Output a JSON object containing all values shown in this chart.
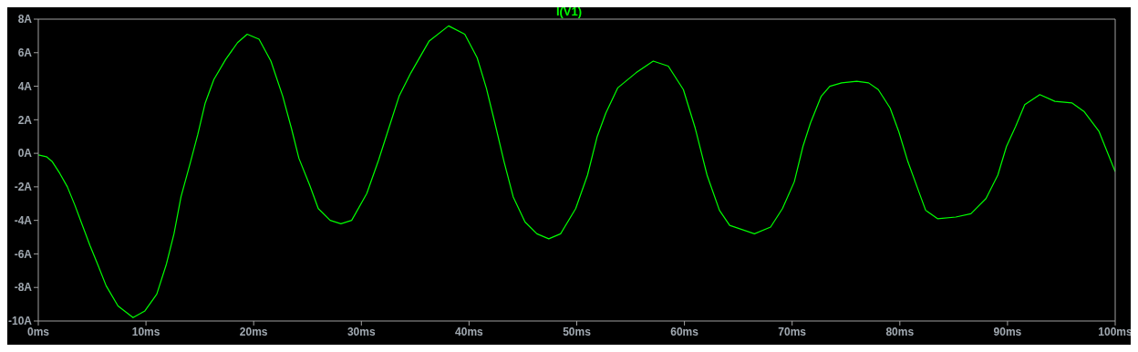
{
  "chart_data": {
    "type": "line",
    "title": "I(V1)",
    "xlim": [
      0,
      100
    ],
    "ylim": [
      -10,
      8
    ],
    "xticks": [
      {
        "value": 0,
        "label": "0ms"
      },
      {
        "value": 10,
        "label": "10ms"
      },
      {
        "value": 20,
        "label": "20ms"
      },
      {
        "value": 30,
        "label": "30ms"
      },
      {
        "value": 40,
        "label": "40ms"
      },
      {
        "value": 50,
        "label": "50ms"
      },
      {
        "value": 60,
        "label": "60ms"
      },
      {
        "value": 70,
        "label": "70ms"
      },
      {
        "value": 80,
        "label": "80ms"
      },
      {
        "value": 90,
        "label": "90ms"
      },
      {
        "value": 100,
        "label": "100ms"
      }
    ],
    "yticks": [
      {
        "value": 8,
        "label": "8A"
      },
      {
        "value": 6,
        "label": "6A"
      },
      {
        "value": 4,
        "label": "4A"
      },
      {
        "value": 2,
        "label": "2A"
      },
      {
        "value": 0,
        "label": "0A"
      },
      {
        "value": -2,
        "label": "-2A"
      },
      {
        "value": -4,
        "label": "-4A"
      },
      {
        "value": -6,
        "label": "-6A"
      },
      {
        "value": -8,
        "label": "-8A"
      },
      {
        "value": -10,
        "label": "-10A"
      }
    ],
    "grid": false,
    "legend": false,
    "marker": "none",
    "line_style": "solid",
    "series": [
      {
        "color": "#00ff00",
        "x": [
          0,
          0.75,
          1.3,
          2,
          2.7,
          3.4,
          4.1,
          4.8,
          5.5,
          6.3,
          7.4,
          8.8,
          9.9,
          11,
          11.9,
          12.6,
          13.25,
          14.1,
          14.8,
          15.5,
          16.3,
          17.4,
          18.5,
          19.4,
          20.5,
          21.6,
          22.7,
          23.5,
          24.2,
          25.2,
          26,
          27.1,
          28.1,
          29.1,
          30.5,
          31.6,
          32.7,
          33.5,
          34.6,
          36.3,
          38.1,
          39.6,
          40.75,
          41.6,
          42.4,
          43.25,
          44.1,
          45.2,
          46.3,
          47.4,
          48.5,
          49.9,
          51,
          51.9,
          52.7,
          53.8,
          55.5,
          57.1,
          58.5,
          59.9,
          61,
          62.1,
          63.25,
          64.2,
          66.5,
          68,
          69.1,
          70.2,
          71,
          71.7,
          72.7,
          73.5,
          74.6,
          76,
          77.1,
          78,
          79.1,
          79.9,
          80.75,
          81.6,
          82.4,
          83.5,
          85.2,
          86.6,
          88,
          89.1,
          89.9,
          90.75,
          91.6,
          93,
          94.4,
          96,
          97.1,
          98.5,
          100
        ],
        "values": [
          -0.1,
          -0.2,
          -0.5,
          -1.2,
          -2,
          -3.1,
          -4.3,
          -5.5,
          -6.6,
          -7.9,
          -9.1,
          -9.8,
          -9.4,
          -8.4,
          -6.6,
          -4.8,
          -2.6,
          -0.6,
          1.1,
          3,
          4.4,
          5.6,
          6.6,
          7.1,
          6.8,
          5.5,
          3.4,
          1.5,
          -0.3,
          -1.9,
          -3.3,
          -4,
          -4.2,
          -4,
          -2.4,
          -0.4,
          1.8,
          3.4,
          4.8,
          6.7,
          7.6,
          7.1,
          5.7,
          3.9,
          1.8,
          -0.5,
          -2.6,
          -4.1,
          -4.8,
          -5.1,
          -4.8,
          -3.3,
          -1.3,
          1,
          2.4,
          3.9,
          4.8,
          5.5,
          5.2,
          3.8,
          1.5,
          -1.3,
          -3.4,
          -4.3,
          -4.8,
          -4.4,
          -3.3,
          -1.7,
          0.4,
          1.8,
          3.4,
          4,
          4.2,
          4.3,
          4.2,
          3.8,
          2.7,
          1.3,
          -0.5,
          -2,
          -3.4,
          -3.9,
          -3.8,
          -3.6,
          -2.7,
          -1.3,
          0.4,
          1.6,
          2.9,
          3.5,
          3.1,
          3,
          2.5,
          1.3,
          -1.1
        ]
      }
    ]
  }
}
